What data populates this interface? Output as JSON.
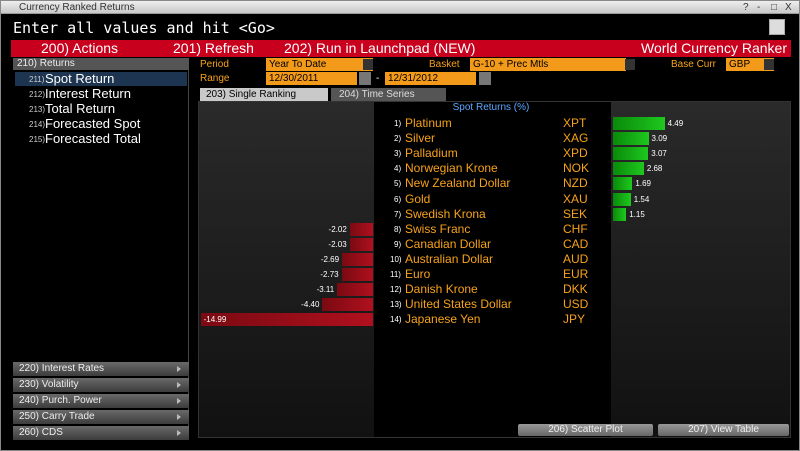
{
  "window_title": "Currency Ranked Returns",
  "window_controls": [
    "?",
    "-",
    "□",
    "X"
  ],
  "command_line": "Enter all values and hit <Go>",
  "toolbar": {
    "items": [
      "200) Actions",
      "201) Refresh",
      "202) Run in Launchpad (NEW)"
    ],
    "title": "World Currency Ranker"
  },
  "sidebar": {
    "header": "210) Returns",
    "items": [
      {
        "num": "211)",
        "label": "Spot Return"
      },
      {
        "num": "212)",
        "label": "Interest Return"
      },
      {
        "num": "213)",
        "label": "Total Return"
      },
      {
        "num": "214)",
        "label": "Forecasted Spot"
      },
      {
        "num": "215)",
        "label": "Forecasted Total"
      }
    ],
    "sections": [
      "220) Interest Rates",
      "230) Volatility",
      "240) Purch. Power",
      "250) Carry Trade",
      "260) CDS"
    ]
  },
  "form": {
    "period_label": "Period",
    "period": "Year To Date",
    "basket_label": "Basket",
    "basket": "G-10 + Prec Mtls",
    "base_label": "Base Curr",
    "base": "GBP",
    "range_label": "Range",
    "range_start": "12/30/2011",
    "range_sep": "-",
    "range_end": "12/31/2012"
  },
  "tabs": [
    "203) Single Ranking",
    "204) Time Series"
  ],
  "chart": {
    "heading": "Spot Returns (%)",
    "rows": [
      {
        "rank": "1)",
        "name": "Platinum",
        "code": "XPT",
        "value": 4.49,
        "value_label": "4.49"
      },
      {
        "rank": "2)",
        "name": "Silver",
        "code": "XAG",
        "value": 3.09,
        "value_label": "3.09"
      },
      {
        "rank": "3)",
        "name": "Palladium",
        "code": "XPD",
        "value": 3.07,
        "value_label": "3.07"
      },
      {
        "rank": "4)",
        "name": "Norwegian Krone",
        "code": "NOK",
        "value": 2.68,
        "value_label": "2.68"
      },
      {
        "rank": "5)",
        "name": "New Zealand Dollar",
        "code": "NZD",
        "value": 1.69,
        "value_label": "1.69"
      },
      {
        "rank": "6)",
        "name": "Gold",
        "code": "XAU",
        "value": 1.54,
        "value_label": "1.54"
      },
      {
        "rank": "7)",
        "name": "Swedish Krona",
        "code": "SEK",
        "value": 1.15,
        "value_label": "1.15"
      },
      {
        "rank": "8)",
        "name": "Swiss Franc",
        "code": "CHF",
        "value": -2.02,
        "value_label": "-2.02"
      },
      {
        "rank": "9)",
        "name": "Canadian Dollar",
        "code": "CAD",
        "value": -2.03,
        "value_label": "-2.03"
      },
      {
        "rank": "10)",
        "name": "Australian Dollar",
        "code": "AUD",
        "value": -2.69,
        "value_label": "-2.69"
      },
      {
        "rank": "11)",
        "name": "Euro",
        "code": "EUR",
        "value": -2.73,
        "value_label": "-2.73"
      },
      {
        "rank": "12)",
        "name": "Danish Krone",
        "code": "DKK",
        "value": -3.11,
        "value_label": "-3.11"
      },
      {
        "rank": "13)",
        "name": "United States Dollar",
        "code": "USD",
        "value": -4.4,
        "value_label": "-4.40"
      },
      {
        "rank": "14)",
        "name": "Japanese Yen",
        "code": "JPY",
        "value": -14.99,
        "value_label": "-14.99"
      }
    ]
  },
  "buttons": [
    "206) Scatter Plot",
    "207) View Table"
  ]
}
